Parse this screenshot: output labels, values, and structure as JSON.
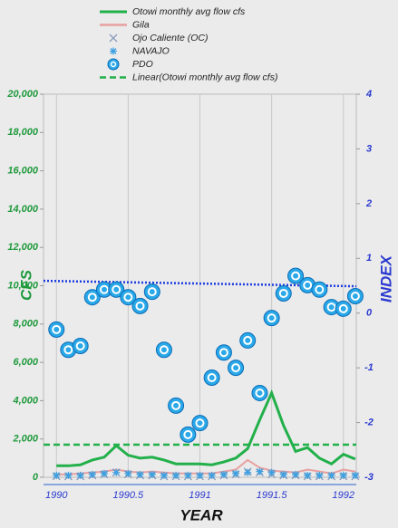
{
  "chart_data": {
    "type": "line",
    "x_label": "YEAR",
    "y_label": "CFS",
    "y2_label": "INDEX",
    "x": [
      1990,
      1990.083,
      1990.167,
      1990.25,
      1990.333,
      1990.417,
      1990.5,
      1990.583,
      1990.667,
      1990.75,
      1990.833,
      1990.917,
      1991,
      1991.083,
      1991.167,
      1991.25,
      1991.333,
      1991.417,
      1991.5,
      1991.583,
      1991.667,
      1991.75,
      1991.833,
      1991.917,
      1992,
      1992.083
    ],
    "xlim": [
      1989.91,
      1992.09
    ],
    "xticks": [
      1990,
      1990.5,
      1991,
      1991.5,
      1992
    ],
    "ylim": [
      0,
      20000
    ],
    "yticks": [
      {
        "value": 0,
        "label": "0"
      },
      {
        "value": 2000,
        "label": "2,000"
      },
      {
        "value": 4000,
        "label": "4,000"
      },
      {
        "value": 6000,
        "label": "6,000"
      },
      {
        "value": 8000,
        "label": "8,000"
      },
      {
        "value": 10000,
        "label": "10,000"
      },
      {
        "value": 12000,
        "label": "12,000"
      },
      {
        "value": 14000,
        "label": "14,000"
      },
      {
        "value": 16000,
        "label": "16,000"
      },
      {
        "value": 18000,
        "label": "18,000"
      },
      {
        "value": 20000,
        "label": "20,000"
      }
    ],
    "y2lim": [
      -3,
      4
    ],
    "y2ticks": [
      -3,
      -2,
      -1,
      0,
      1,
      2,
      3,
      4
    ],
    "grid": true,
    "series": [
      {
        "name": "Otowi monthly avg flow cfs",
        "kind": "line",
        "color": "#22b04a",
        "values": [
          600,
          600,
          650,
          900,
          1050,
          1650,
          1150,
          1000,
          1050,
          900,
          700,
          700,
          700,
          650,
          800,
          1000,
          1500,
          3000,
          4400,
          2700,
          1350,
          1550,
          1000,
          700,
          1200,
          950
        ]
      },
      {
        "name": "Gila",
        "kind": "line-thin",
        "color": "#e8a0a0",
        "values": [
          150,
          150,
          200,
          250,
          300,
          400,
          300,
          250,
          300,
          250,
          200,
          200,
          200,
          200,
          300,
          400,
          900,
          500,
          350,
          300,
          250,
          400,
          300,
          200,
          400,
          300
        ]
      },
      {
        "name": "Ojo Caliente (OC)",
        "kind": "x-marker",
        "color": "#8899bb",
        "values": [
          50,
          50,
          50,
          100,
          150,
          250,
          150,
          100,
          100,
          50,
          50,
          50,
          50,
          50,
          100,
          150,
          300,
          250,
          150,
          100,
          100,
          50,
          50,
          50,
          50,
          50
        ]
      },
      {
        "name": "NAVAJO",
        "kind": "asterisk",
        "color": "#3fa0e0",
        "values": [
          100,
          100,
          100,
          150,
          200,
          250,
          200,
          150,
          150,
          100,
          100,
          100,
          100,
          100,
          150,
          200,
          250,
          300,
          250,
          150,
          150,
          100,
          100,
          100,
          100,
          100
        ]
      },
      {
        "name": "PDO",
        "kind": "circle",
        "color": "#2aa8e8",
        "axis": "y2",
        "values": [
          -0.3,
          -0.67,
          -0.6,
          0.29,
          0.43,
          0.43,
          0.29,
          0.13,
          0.39,
          -0.67,
          -1.69,
          -2.22,
          -2.01,
          -1.18,
          -0.72,
          -1.0,
          -0.5,
          -1.46,
          -0.09,
          0.36,
          0.68,
          0.51,
          0.43,
          0.11,
          0.08,
          0.31
        ]
      },
      {
        "name": "Linear(Otowi monthly avg flow cfs)",
        "kind": "dashed",
        "color": "#22b04a",
        "x": [
          1989.91,
          1992.09
        ],
        "values": [
          1700,
          1700
        ]
      }
    ],
    "pdo_trend": {
      "color": "#1a3adf",
      "x": [
        1989.91,
        1992.09
      ],
      "values": [
        0.59,
        0.49
      ]
    }
  }
}
